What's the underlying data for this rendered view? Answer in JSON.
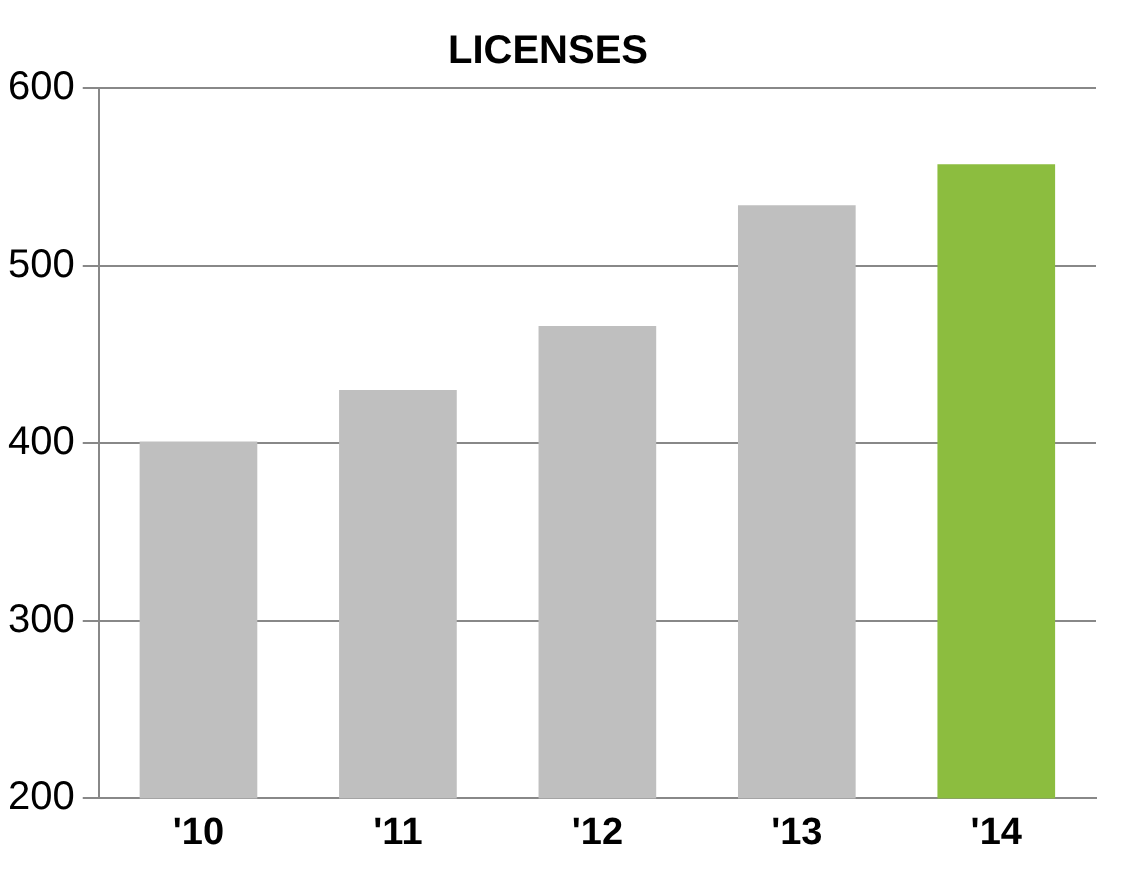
{
  "chart_data": {
    "type": "bar",
    "title": "LICENSES",
    "categories": [
      "'10",
      "'11",
      "'12",
      "'13",
      "'14"
    ],
    "values": [
      401,
      430,
      466,
      534,
      557
    ],
    "colors": [
      "#bfbfbf",
      "#bfbfbf",
      "#bfbfbf",
      "#bfbfbf",
      "#8cbd3f"
    ],
    "ylim": [
      200,
      600
    ],
    "yticks": [
      200,
      300,
      400,
      500,
      600
    ],
    "grid": "y"
  }
}
